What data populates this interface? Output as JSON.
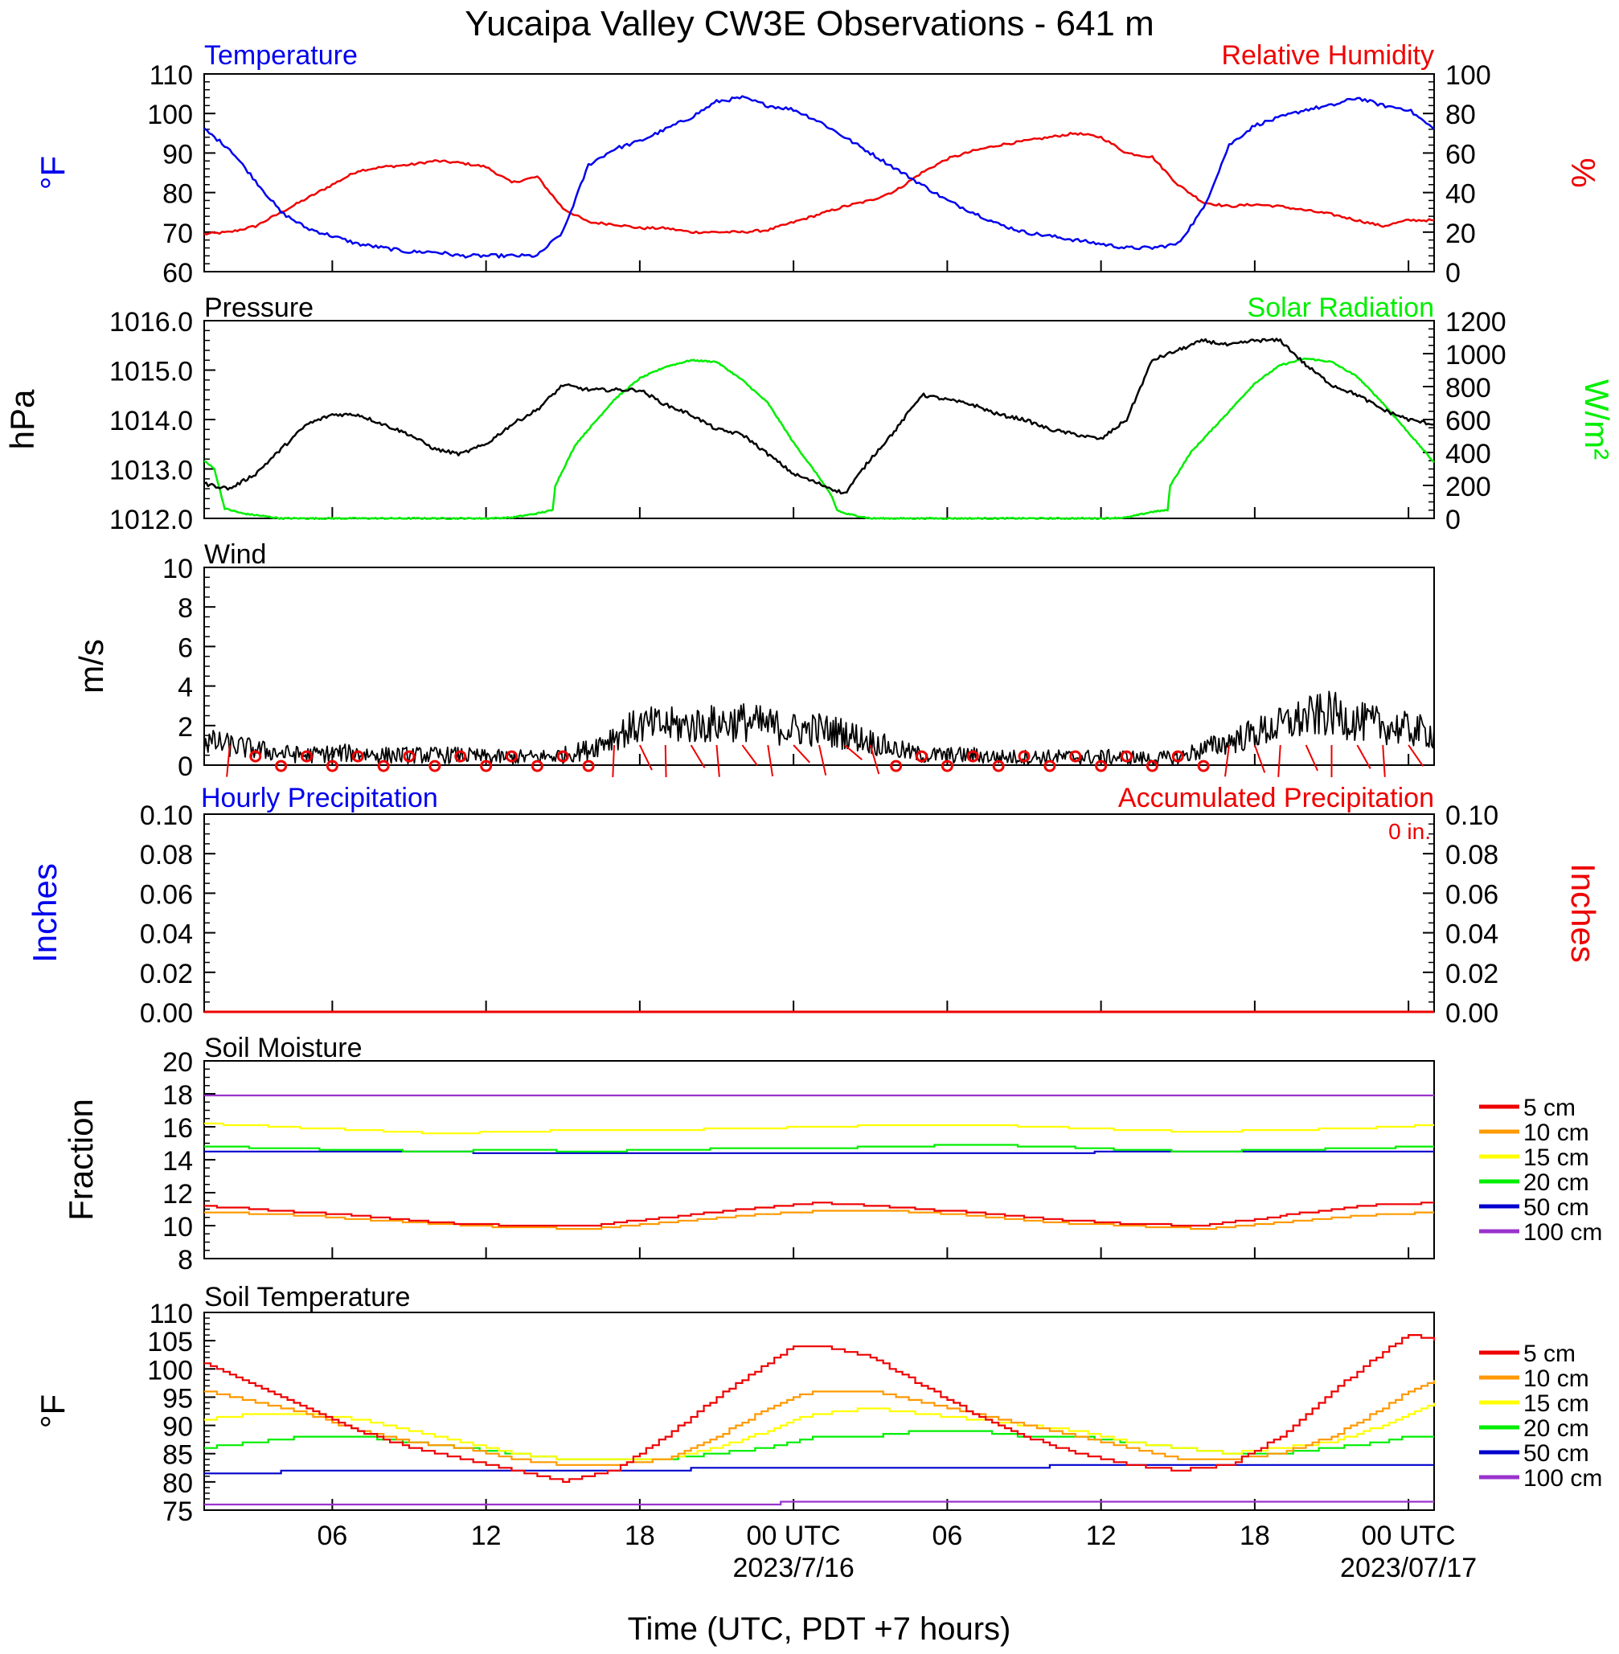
{
  "page": {
    "title": "Yucaipa Valley CW3E Observations - 641 m",
    "xlabel": "Time (UTC, PDT +7 hours)"
  },
  "time_axis": {
    "start_hour": 1,
    "end_hour": 49,
    "tick_hours": [
      6,
      12,
      18,
      24,
      30,
      36,
      42,
      48
    ],
    "tick_labels": [
      "06",
      "12",
      "18",
      "00 UTC",
      "06",
      "12",
      "18",
      "00 UTC"
    ],
    "date_labels": [
      {
        "hour": 24,
        "text": "2023/7/16"
      },
      {
        "hour": 48,
        "text": "2023/07/17"
      }
    ]
  },
  "colors": {
    "temperature": "#0000ee",
    "humidity": "#ee0000",
    "pressure": "#000000",
    "solar": "#00ee00",
    "wind": "#000000",
    "barb": "#ee0000",
    "hourly_precip": "#0000ee",
    "accum_precip": "#ee0000",
    "depth_5cm": "#ee0000",
    "depth_10cm": "#ff9900",
    "depth_15cm": "#ffff00",
    "depth_20cm": "#00ee00",
    "depth_50cm": "#0000cc",
    "depth_100cm": "#9933cc"
  },
  "panels": {
    "temp_rh": {
      "left_title": "Temperature",
      "right_title": "Relative Humidity",
      "left_unit": "°F",
      "right_unit": "%",
      "left_ticks": [
        "60",
        "70",
        "80",
        "90",
        "100",
        "110"
      ],
      "right_ticks": [
        "0",
        "20",
        "40",
        "60",
        "80",
        "100"
      ]
    },
    "pressure_solar": {
      "left_title": "Pressure",
      "right_title": "Solar Radiation",
      "left_unit": "hPa",
      "right_unit": "W/m²",
      "left_ticks": [
        "1012.0",
        "1013.0",
        "1014.0",
        "1015.0",
        "1016.0"
      ],
      "right_ticks": [
        "0",
        "200",
        "400",
        "600",
        "800",
        "1000",
        "1200"
      ]
    },
    "wind": {
      "left_title": "Wind",
      "left_unit": "m/s",
      "left_ticks": [
        "0",
        "2",
        "4",
        "6",
        "8",
        "10"
      ]
    },
    "precip": {
      "left_title": "Hourly Precipitation",
      "right_title": "Accumulated Precipitation",
      "accum_total": "0 in.",
      "left_unit": "Inches",
      "right_unit": "Inches",
      "left_ticks": [
        "0.00",
        "0.02",
        "0.04",
        "0.06",
        "0.08",
        "0.10"
      ],
      "right_ticks": [
        "0.00",
        "0.02",
        "0.04",
        "0.06",
        "0.08",
        "0.10"
      ]
    },
    "soil_moisture": {
      "left_title": "Soil Moisture",
      "left_unit": "Fraction",
      "left_ticks": [
        "8",
        "10",
        "12",
        "14",
        "16",
        "18",
        "20"
      ],
      "legend": [
        "5 cm",
        "10 cm",
        "15 cm",
        "20 cm",
        "50 cm",
        "100 cm"
      ]
    },
    "soil_temp": {
      "left_title": "Soil Temperature",
      "left_unit": "°F",
      "left_ticks": [
        "75",
        "80",
        "85",
        "90",
        "95",
        "100",
        "105",
        "110"
      ],
      "legend": [
        "5 cm",
        "10 cm",
        "15 cm",
        "20 cm",
        "50 cm",
        "100 cm"
      ]
    }
  },
  "chart_data": [
    {
      "type": "line",
      "title": "Temperature",
      "ylabel": "°F",
      "ylim": [
        60,
        110
      ],
      "x_units": "hours since 2023-07-15 00 UTC",
      "series": [
        {
          "name": "Temperature",
          "axis": "left",
          "x": [
            1,
            2,
            3,
            4,
            5,
            6,
            7,
            8,
            9,
            10,
            11,
            12,
            13,
            14,
            15,
            16,
            17,
            18,
            19,
            20,
            21,
            22,
            23,
            24,
            25,
            26,
            27,
            28,
            29,
            30,
            31,
            32,
            33,
            34,
            35,
            36,
            37,
            38,
            39,
            40,
            41,
            42,
            43,
            44,
            45,
            46,
            47,
            48,
            49
          ],
          "values": [
            96,
            91,
            83,
            75,
            71,
            69,
            67,
            66,
            65,
            65,
            64,
            64,
            64,
            64,
            70,
            87,
            91,
            93,
            96,
            99,
            103,
            104,
            102,
            101,
            98,
            94,
            90,
            86,
            82,
            78,
            75,
            72,
            70,
            69,
            68,
            67,
            66,
            66,
            67,
            76,
            92,
            97,
            99,
            101,
            102,
            104,
            102,
            101,
            96
          ]
        }
      ]
    },
    {
      "type": "line",
      "title": "Relative Humidity",
      "ylabel": "%",
      "ylim": [
        0,
        100
      ],
      "series": [
        {
          "name": "Relative Humidity",
          "axis": "right",
          "x": [
            1,
            2,
            3,
            4,
            5,
            6,
            7,
            8,
            9,
            10,
            11,
            12,
            13,
            14,
            15,
            16,
            17,
            18,
            19,
            20,
            21,
            22,
            23,
            24,
            25,
            26,
            27,
            28,
            29,
            30,
            31,
            32,
            33,
            34,
            35,
            36,
            37,
            38,
            39,
            40,
            41,
            42,
            43,
            44,
            45,
            46,
            47,
            48,
            49
          ],
          "values": [
            19,
            20,
            23,
            30,
            37,
            44,
            51,
            53,
            54,
            56,
            55,
            53,
            45,
            48,
            32,
            25,
            24,
            22,
            22,
            20,
            20,
            20,
            21,
            25,
            29,
            33,
            36,
            41,
            50,
            57,
            61,
            64,
            66,
            68,
            70,
            68,
            60,
            58,
            44,
            35,
            33,
            34,
            33,
            31,
            29,
            26,
            23,
            26,
            26
          ]
        }
      ]
    },
    {
      "type": "line",
      "title": "Pressure",
      "ylabel": "hPa",
      "ylim": [
        1012,
        1016
      ],
      "series": [
        {
          "name": "Pressure",
          "axis": "left",
          "x": [
            1,
            2,
            3,
            4,
            5,
            6,
            7,
            8,
            9,
            10,
            11,
            12,
            13,
            14,
            15,
            16,
            17,
            18,
            19,
            20,
            21,
            22,
            23,
            24,
            25,
            26,
            27,
            28,
            29,
            30,
            31,
            32,
            33,
            34,
            35,
            36,
            37,
            38,
            39,
            40,
            41,
            42,
            43,
            44,
            45,
            46,
            47,
            48,
            49
          ],
          "values": [
            1012.7,
            1012.6,
            1012.9,
            1013.4,
            1013.9,
            1014.1,
            1014.1,
            1013.9,
            1013.7,
            1013.4,
            1013.3,
            1013.5,
            1013.9,
            1014.2,
            1014.7,
            1014.6,
            1014.6,
            1014.6,
            1014.3,
            1014.1,
            1013.8,
            1013.7,
            1013.3,
            1012.9,
            1012.7,
            1012.5,
            1013.2,
            1013.8,
            1014.5,
            1014.4,
            1014.3,
            1014.1,
            1014.0,
            1013.8,
            1013.7,
            1013.6,
            1014.0,
            1015.2,
            1015.4,
            1015.6,
            1015.5,
            1015.6,
            1015.6,
            1015.1,
            1014.7,
            1014.5,
            1014.2,
            1014.0,
            1013.9
          ]
        }
      ]
    },
    {
      "type": "line",
      "title": "Solar Radiation",
      "ylabel": "W/m²",
      "ylim": [
        0,
        1200
      ],
      "series": [
        {
          "name": "Solar Radiation",
          "axis": "right",
          "x": [
            1,
            1.4,
            1.8,
            2.5,
            4,
            6,
            8,
            10,
            12,
            13,
            14,
            14.6,
            14.7,
            15.5,
            17,
            18,
            19,
            20,
            21,
            22,
            23,
            24,
            25,
            25.5,
            25.7,
            26,
            27,
            28,
            30,
            32,
            34,
            36,
            37,
            38,
            38.6,
            38.7,
            39.5,
            41,
            42,
            43,
            44,
            45,
            46,
            47,
            48,
            49
          ],
          "values": [
            350,
            300,
            60,
            30,
            0,
            0,
            0,
            0,
            0,
            5,
            30,
            50,
            200,
            450,
            720,
            850,
            920,
            960,
            950,
            840,
            700,
            460,
            250,
            130,
            50,
            30,
            0,
            0,
            0,
            0,
            0,
            0,
            5,
            40,
            50,
            200,
            400,
            650,
            820,
            930,
            970,
            950,
            860,
            700,
            520,
            340
          ]
        }
      ]
    },
    {
      "type": "line",
      "title": "Wind",
      "ylabel": "m/s",
      "ylim": [
        0,
        10
      ],
      "series": [
        {
          "name": "Wind",
          "x": [
            1,
            2,
            3,
            4,
            5,
            6,
            7,
            8,
            9,
            10,
            11,
            12,
            13,
            14,
            15,
            16,
            17,
            18,
            19,
            20,
            21,
            22,
            23,
            24,
            25,
            26,
            27,
            28,
            29,
            30,
            31,
            32,
            33,
            34,
            35,
            36,
            37,
            38,
            39,
            40,
            41,
            42,
            43,
            44,
            45,
            46,
            47,
            48,
            49
          ],
          "values": [
            1.2,
            1.0,
            0.8,
            0.6,
            0.5,
            0.6,
            0.6,
            0.5,
            0.5,
            0.5,
            0.5,
            0.4,
            0.4,
            0.4,
            0.5,
            0.8,
            1.5,
            2.0,
            2.0,
            2.0,
            2.1,
            2.2,
            2.0,
            1.8,
            1.8,
            1.6,
            1.2,
            0.8,
            0.5,
            0.5,
            0.5,
            0.4,
            0.4,
            0.4,
            0.4,
            0.4,
            0.4,
            0.3,
            0.4,
            0.8,
            1.2,
            1.6,
            2.0,
            2.4,
            2.6,
            2.2,
            2.0,
            1.8,
            1.6
          ]
        }
      ]
    },
    {
      "type": "line",
      "title": "Hourly Precipitation",
      "ylabel": "Inches",
      "ylim": [
        0,
        0.1
      ],
      "series": [
        {
          "name": "Hourly Precipitation",
          "x": [
            1,
            49
          ],
          "values": [
            0,
            0
          ]
        },
        {
          "name": "Accumulated Precipitation",
          "x": [
            1,
            49
          ],
          "values": [
            0,
            0
          ]
        }
      ]
    },
    {
      "type": "line",
      "title": "Soil Moisture",
      "ylabel": "Fraction",
      "ylim": [
        8,
        20
      ],
      "x": [
        1,
        4,
        7,
        10,
        13,
        16,
        19,
        22,
        25,
        28,
        31,
        34,
        37,
        40,
        43,
        46,
        49
      ],
      "series": [
        {
          "name": "5 cm",
          "values": [
            11.2,
            10.9,
            10.6,
            10.2,
            10.0,
            10.0,
            10.5,
            11.0,
            11.4,
            11.1,
            10.8,
            10.4,
            10.1,
            10.0,
            10.6,
            11.2,
            11.4
          ]
        },
        {
          "name": "10 cm",
          "values": [
            10.8,
            10.7,
            10.4,
            10.1,
            9.9,
            9.8,
            10.2,
            10.6,
            10.9,
            10.9,
            10.6,
            10.2,
            10.0,
            9.8,
            10.2,
            10.6,
            10.8
          ]
        },
        {
          "name": "15 cm",
          "values": [
            16.2,
            16.0,
            15.8,
            15.6,
            15.7,
            15.8,
            15.8,
            15.9,
            16.0,
            16.1,
            16.1,
            16.0,
            15.8,
            15.7,
            15.8,
            15.9,
            16.1
          ]
        },
        {
          "name": "20 cm",
          "values": [
            14.8,
            14.7,
            14.6,
            14.5,
            14.6,
            14.5,
            14.6,
            14.7,
            14.7,
            14.8,
            14.9,
            14.8,
            14.6,
            14.5,
            14.6,
            14.7,
            14.8
          ]
        },
        {
          "name": "50 cm",
          "values": [
            14.5,
            14.5,
            14.5,
            14.5,
            14.4,
            14.4,
            14.4,
            14.4,
            14.4,
            14.4,
            14.4,
            14.4,
            14.5,
            14.5,
            14.5,
            14.5,
            14.5
          ]
        },
        {
          "name": "100 cm",
          "values": [
            17.9,
            17.9,
            17.9,
            17.9,
            17.9,
            17.9,
            17.9,
            17.9,
            17.9,
            17.9,
            17.9,
            17.9,
            17.9,
            17.9,
            17.9,
            17.9,
            17.9
          ]
        }
      ]
    },
    {
      "type": "line",
      "title": "Soil Temperature",
      "ylabel": "°F",
      "ylim": [
        75,
        110
      ],
      "x": [
        1,
        3,
        5,
        7,
        9,
        11,
        13,
        15,
        17,
        19,
        21,
        23,
        24,
        25,
        27,
        29,
        31,
        33,
        35,
        37,
        39,
        41,
        43,
        45,
        47,
        48,
        49
      ],
      "series": [
        {
          "name": "5 cm",
          "values": [
            101,
            97,
            93,
            89,
            86,
            84,
            82,
            80,
            82,
            88,
            95,
            101,
            104,
            104,
            102,
            97,
            92,
            88,
            85,
            83,
            82,
            83,
            88,
            96,
            103,
            106,
            105
          ]
        },
        {
          "name": "10 cm",
          "values": [
            96,
            94,
            92,
            89,
            87,
            86,
            84,
            83,
            83,
            84,
            88,
            93,
            95,
            96,
            96,
            94,
            92,
            90,
            88,
            86,
            84,
            84,
            85,
            88,
            93,
            96,
            98
          ]
        },
        {
          "name": "15 cm",
          "values": [
            91,
            92,
            92,
            91,
            89,
            87,
            85,
            84,
            84,
            84,
            86,
            89,
            91,
            92,
            93,
            92,
            91,
            90,
            89,
            87,
            86,
            85,
            86,
            87,
            90,
            92,
            94
          ]
        },
        {
          "name": "20 cm",
          "values": [
            86,
            87,
            88,
            88,
            87,
            86,
            85,
            84,
            84,
            84,
            85,
            86,
            87,
            88,
            88,
            89,
            89,
            88,
            88,
            87,
            86,
            85,
            85,
            86,
            87,
            88,
            88
          ]
        },
        {
          "name": "50 cm",
          "values": [
            81.5,
            81.7,
            81.8,
            82,
            82,
            82,
            82,
            82,
            82,
            82.2,
            82.3,
            82.4,
            82.5,
            82.5,
            82.5,
            82.5,
            82.6,
            82.7,
            82.8,
            82.9,
            83,
            83,
            83,
            83,
            83,
            83,
            83
          ]
        },
        {
          "name": "100 cm",
          "values": [
            75.8,
            75.8,
            75.9,
            75.9,
            76,
            76,
            76,
            76,
            76,
            76,
            76,
            76.2,
            76.3,
            76.3,
            76.3,
            76.4,
            76.4,
            76.5,
            76.5,
            76.6,
            76.6,
            76.6,
            76.6,
            76.6,
            76.6,
            76.6,
            76.6
          ]
        }
      ]
    }
  ]
}
